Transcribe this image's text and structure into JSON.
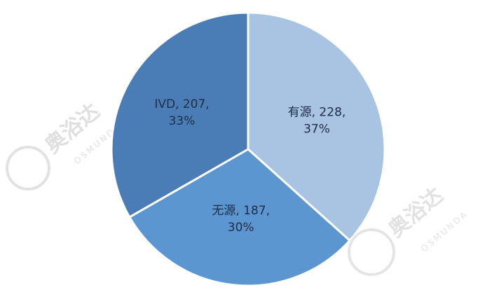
{
  "chart_data": {
    "type": "pie",
    "title": "",
    "start_angle": "12 o'clock",
    "direction": "clockwise",
    "slices": [
      {
        "label": "有源",
        "value": 228,
        "percent": "37%",
        "color": "#a9c3e3"
      },
      {
        "label": "无源",
        "value": 187,
        "percent": "30%",
        "color": "#5b96d0"
      },
      {
        "label": "IVD",
        "value": 207,
        "percent": "33%",
        "color": "#4a7db6"
      }
    ],
    "legend": "none"
  },
  "watermark": {
    "cn": "奥浴达",
    "en": "OSMUNDA"
  }
}
